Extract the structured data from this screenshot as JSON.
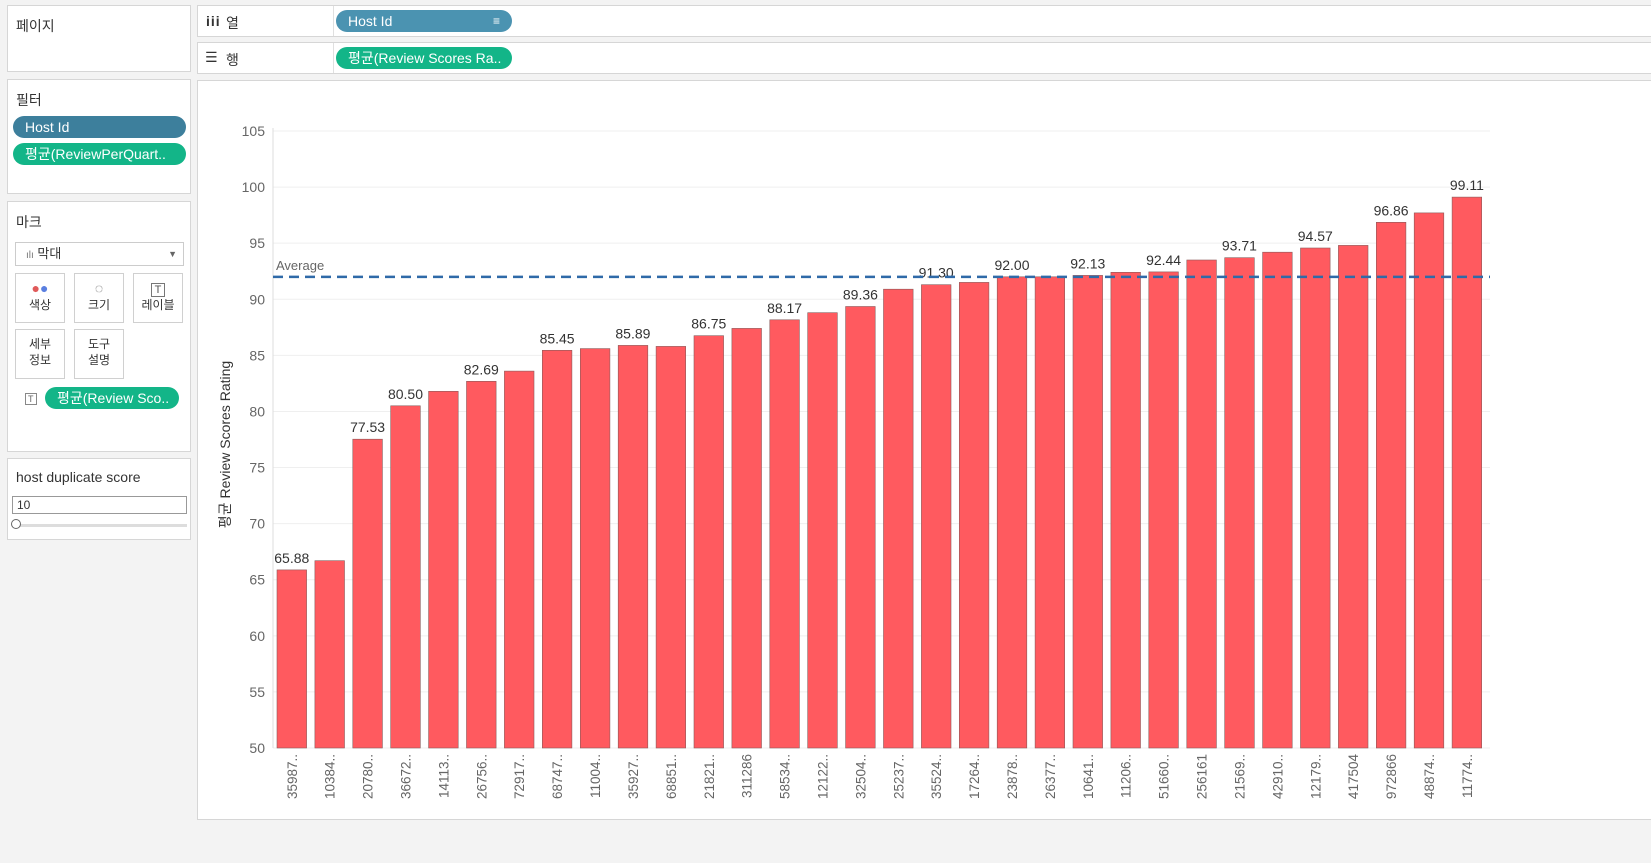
{
  "pages_panel": {
    "title": "페이지"
  },
  "columns_shelf": {
    "icon": "columns-icon",
    "label": "열",
    "pill": "Host Id"
  },
  "rows_shelf": {
    "icon": "rows-icon",
    "label": "행",
    "pill": "평균(Review Scores Ra.."
  },
  "filters": {
    "title": "필터",
    "items": [
      "Host Id",
      "평균(ReviewPerQuart.."
    ]
  },
  "marks": {
    "title": "마크",
    "type": "막대",
    "buttons": {
      "color": "색상",
      "size": "크기",
      "label": "레이블",
      "detail_1": "세부",
      "detail_2": "정보",
      "tooltip_1": "도구",
      "tooltip_2": "설명"
    },
    "label_pill": "평균(Review Sco.."
  },
  "parameter": {
    "title": "host duplicate score",
    "value": "10"
  },
  "chart_data": {
    "type": "bar",
    "ylabel": "평균 Review Scores Rating",
    "ylim": [
      50,
      105
    ],
    "yticks": [
      50,
      55,
      60,
      65,
      70,
      75,
      80,
      85,
      90,
      95,
      100,
      105
    ],
    "reference_line": {
      "label": "Average",
      "value": 92.0
    },
    "bar_color": "#ff5a5f",
    "categories": [
      "35987..",
      "10384..",
      "20780..",
      "36672..",
      "14113..",
      "26756..",
      "72917..",
      "68747..",
      "11004..",
      "35927..",
      "68851..",
      "21821..",
      "311286",
      "58534..",
      "12122..",
      "32504..",
      "25237..",
      "35524..",
      "17264..",
      "23878..",
      "26377..",
      "10641..",
      "11206..",
      "51660..",
      "256161",
      "21569..",
      "42910..",
      "12179..",
      "417504",
      "972866",
      "48874..",
      "11774.."
    ],
    "values": [
      65.88,
      66.7,
      77.53,
      80.5,
      81.8,
      82.69,
      83.6,
      85.45,
      85.6,
      85.89,
      85.8,
      86.75,
      87.4,
      88.17,
      88.8,
      89.36,
      90.9,
      91.3,
      91.5,
      92.0,
      92.0,
      92.13,
      92.4,
      92.44,
      93.5,
      93.71,
      94.2,
      94.57,
      94.8,
      96.86,
      97.7,
      99.11
    ],
    "data_labels": [
      "65.88",
      "",
      "77.53",
      "80.50",
      "",
      "82.69",
      "",
      "85.45",
      "",
      "85.89",
      "",
      "86.75",
      "",
      "88.17",
      "",
      "89.36",
      "",
      "91.30",
      "",
      "92.00",
      "",
      "92.13",
      "",
      "92.44",
      "",
      "93.71",
      "",
      "94.57",
      "",
      "96.86",
      "",
      "99.11"
    ]
  }
}
